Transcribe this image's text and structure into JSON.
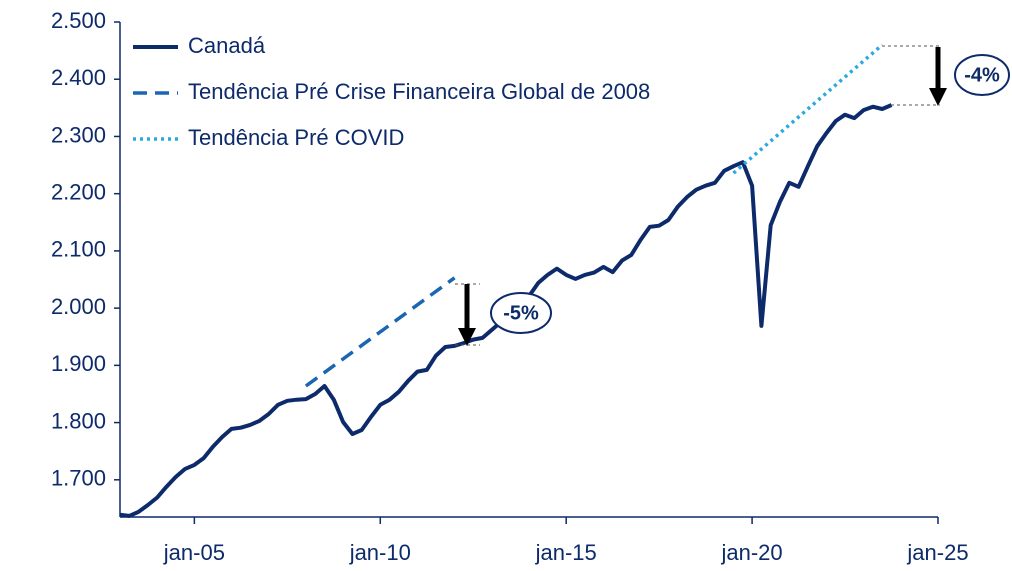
{
  "chart_data": {
    "type": "line",
    "series": [
      {
        "name": "Canadá",
        "color": "#0d2a6a",
        "style": "solid",
        "x": [
          "2003-01",
          "2003-04",
          "2003-07",
          "2003-10",
          "2004-01",
          "2004-04",
          "2004-07",
          "2004-10",
          "2005-01",
          "2005-04",
          "2005-07",
          "2005-10",
          "2006-01",
          "2006-04",
          "2006-07",
          "2006-10",
          "2007-01",
          "2007-04",
          "2007-07",
          "2007-10",
          "2008-01",
          "2008-04",
          "2008-07",
          "2008-10",
          "2009-01",
          "2009-04",
          "2009-07",
          "2009-10",
          "2010-01",
          "2010-04",
          "2010-07",
          "2010-10",
          "2011-01",
          "2011-04",
          "2011-07",
          "2011-10",
          "2012-01",
          "2012-04",
          "2012-07",
          "2012-10",
          "2013-01",
          "2013-04",
          "2013-07",
          "2013-10",
          "2014-01",
          "2014-04",
          "2014-07",
          "2014-10",
          "2015-01",
          "2015-04",
          "2015-07",
          "2015-10",
          "2016-01",
          "2016-04",
          "2016-07",
          "2016-10",
          "2017-01",
          "2017-04",
          "2017-07",
          "2017-10",
          "2018-01",
          "2018-04",
          "2018-07",
          "2018-10",
          "2019-01",
          "2019-04",
          "2019-07",
          "2019-10",
          "2020-01",
          "2020-04",
          "2020-07",
          "2020-10",
          "2021-01",
          "2021-04",
          "2021-07",
          "2021-10",
          "2022-01",
          "2022-04",
          "2022-07",
          "2022-10",
          "2023-01",
          "2023-04",
          "2023-07",
          "2023-10"
        ],
        "values": [
          1639,
          1637,
          1644,
          1656,
          1669,
          1688,
          1705,
          1719,
          1726,
          1738,
          1758,
          1775,
          1789,
          1791,
          1796,
          1803,
          1815,
          1831,
          1838,
          1840,
          1841,
          1850,
          1864,
          1840,
          1801,
          1780,
          1787,
          1810,
          1831,
          1840,
          1854,
          1873,
          1889,
          1892,
          1917,
          1932,
          1934,
          1939,
          1945,
          1948,
          1962,
          1976,
          1995,
          2011,
          2021,
          2044,
          2058,
          2069,
          2058,
          2051,
          2058,
          2062,
          2072,
          2063,
          2083,
          2093,
          2119,
          2142,
          2144,
          2154,
          2177,
          2194,
          2207,
          2214,
          2219,
          2240,
          2248,
          2255,
          2214,
          1969,
          2145,
          2186,
          2219,
          2212,
          2248,
          2283,
          2306,
          2327,
          2338,
          2332,
          2346,
          2352,
          2348,
          2355
        ]
      },
      {
        "name": "Tendência Pré Crise Financeira Global de 2008",
        "color": "#1a66b3",
        "style": "dashed",
        "x": [
          "2008-01",
          "2012-01"
        ],
        "values": [
          1864,
          2053
        ]
      },
      {
        "name": "Tendência Pré COVID",
        "color": "#2aa9e0",
        "style": "dotted",
        "x": [
          "2019-07",
          "2023-07"
        ],
        "values": [
          2236,
          2460
        ]
      }
    ],
    "annotations": [
      "-5%",
      "-4%"
    ],
    "xlim": [
      "2003-01",
      "2025-01"
    ],
    "xticks": [
      {
        "value": "2005-01",
        "label": "jan-05"
      },
      {
        "value": "2010-01",
        "label": "jan-10"
      },
      {
        "value": "2015-01",
        "label": "jan-15"
      },
      {
        "value": "2020-01",
        "label": "jan-20"
      },
      {
        "value": "2025-01",
        "label": "jan-25"
      }
    ],
    "ylim": [
      1635,
      2500
    ],
    "yticks": [
      {
        "value": 1700,
        "label": "1.700"
      },
      {
        "value": 1800,
        "label": "1.800"
      },
      {
        "value": 1900,
        "label": "1.900"
      },
      {
        "value": 2000,
        "label": "2.000"
      },
      {
        "value": 2100,
        "label": "2.100"
      },
      {
        "value": 2200,
        "label": "2.200"
      },
      {
        "value": 2300,
        "label": "2.300"
      },
      {
        "value": 2400,
        "label": "2.400"
      },
      {
        "value": 2500,
        "label": "2.500"
      }
    ],
    "legend": "upper left"
  }
}
